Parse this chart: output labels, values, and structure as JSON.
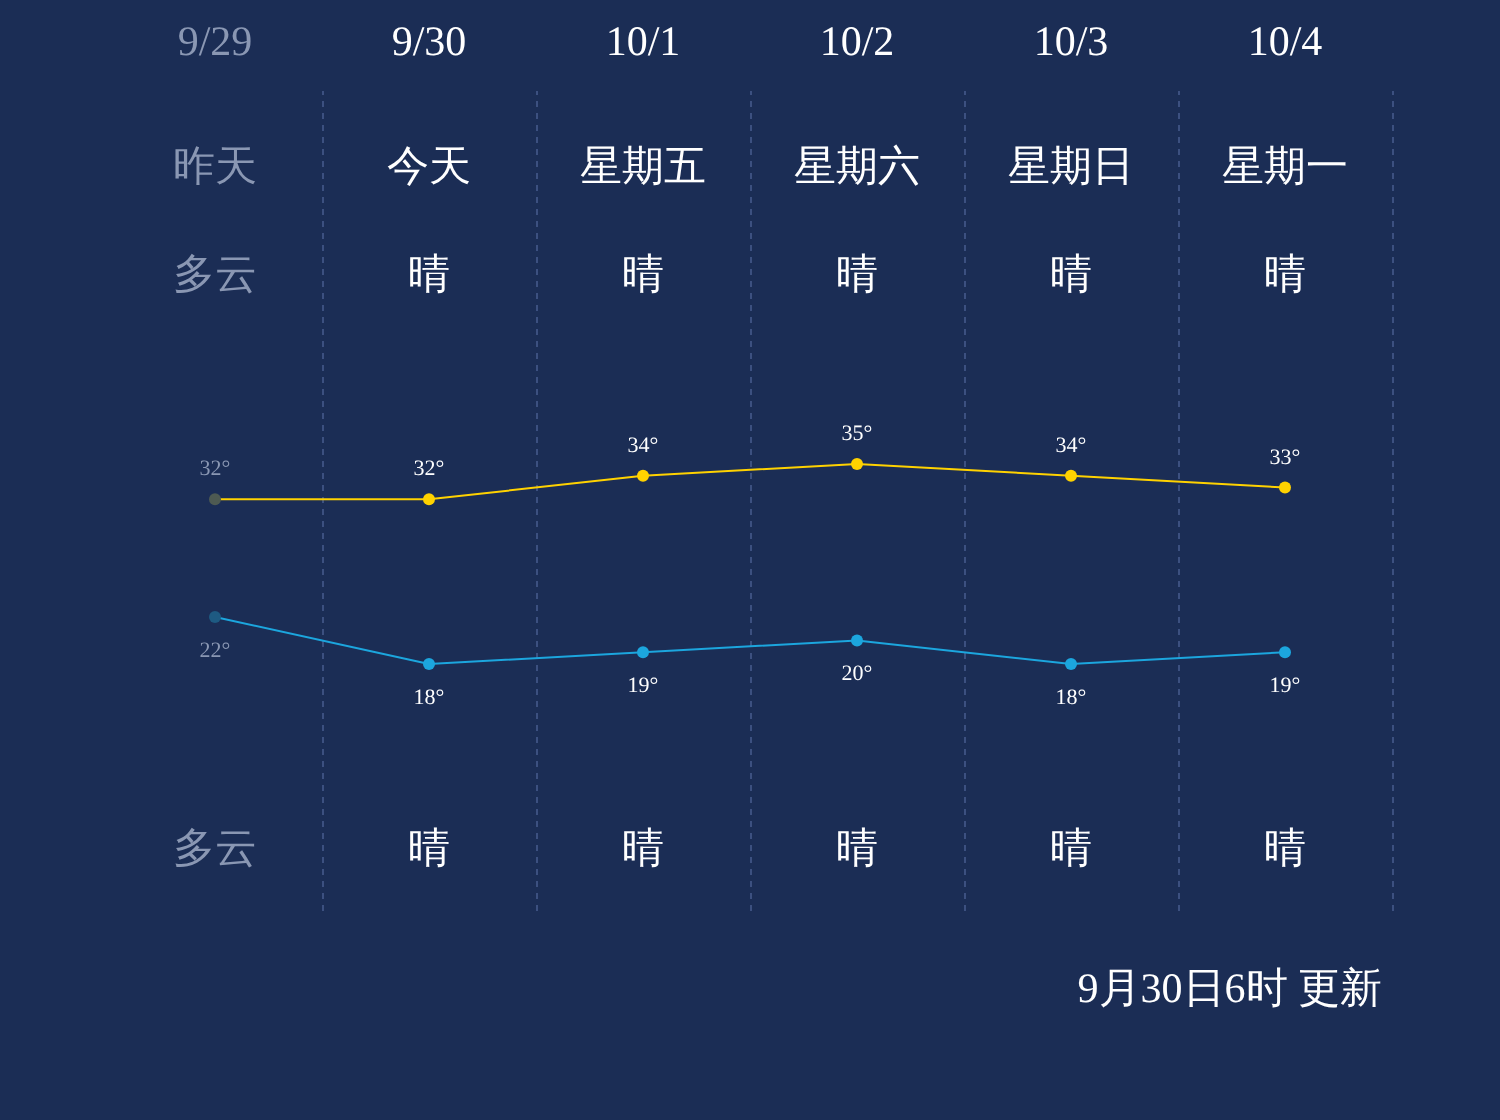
{
  "chart_data": {
    "type": "line",
    "categories": [
      "9/29",
      "9/30",
      "10/1",
      "10/2",
      "10/3",
      "10/4"
    ],
    "series": [
      {
        "color": "#ffd200",
        "colors": [
          "#4e5a52",
          "#ffd200",
          "#ffd200",
          "#ffd200",
          "#ffd200",
          "#ffd200"
        ],
        "values": [
          32,
          32,
          34,
          35,
          34,
          33
        ],
        "value_labels": [
          "32°",
          "32°",
          "34°",
          "35°",
          "34°",
          "33°"
        ]
      },
      {
        "color": "#1ca6de",
        "colors": [
          "#1e5a82",
          "#1ca6de",
          "#1ca6de",
          "#1ca6de",
          "#1ca6de",
          "#1ca6de"
        ],
        "values": [
          22,
          18,
          19,
          20,
          18,
          19
        ],
        "value_labels": [
          "22°",
          "18°",
          "19°",
          "20°",
          "18°",
          "19°"
        ]
      }
    ],
    "grid": "x",
    "marker": "circle",
    "annotations": [
      "昨天",
      "今天",
      "星期五",
      "星期六",
      "星期日",
      "星期一",
      "多云",
      "晴",
      "晴",
      "晴",
      "晴",
      "晴",
      "多云",
      "晴",
      "晴",
      "晴",
      "晴",
      "晴",
      "9月30日6时 更新"
    ]
  }
}
